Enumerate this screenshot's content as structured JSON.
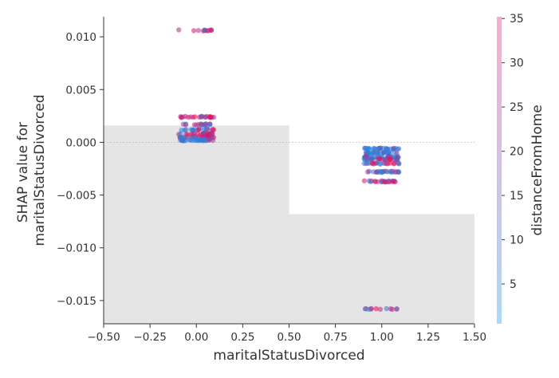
{
  "chart_data": {
    "type": "scatter",
    "title": "",
    "xlabel": "maritalStatusDivorced",
    "ylabel_lines": [
      "SHAP value for",
      "maritalStatusDivorced"
    ],
    "xlim": [
      -0.5,
      1.5
    ],
    "ylim": [
      -0.0172,
      0.0119
    ],
    "xticks": [
      -0.5,
      -0.25,
      0.0,
      0.25,
      0.5,
      0.75,
      1.0,
      1.25,
      1.5
    ],
    "xtick_labels": [
      "−0.50",
      "−0.25",
      "0.00",
      "0.25",
      "0.50",
      "0.75",
      "1.00",
      "1.25",
      "1.50"
    ],
    "yticks": [
      0.01,
      0.005,
      0.0,
      -0.005,
      -0.01,
      -0.015
    ],
    "ytick_labels": [
      "0.010",
      "0.005",
      "0.000",
      "−0.005",
      "−0.010",
      "−0.015"
    ],
    "zero_line": 0.0,
    "background_histogram": {
      "color": "#e5e5e5",
      "bins": [
        {
          "x0": -0.5,
          "x1": 0.5,
          "y_top": 0.0016
        },
        {
          "x0": 0.5,
          "x1": 1.5,
          "y_top": -0.0068
        }
      ]
    },
    "point_groups": [
      {
        "x": 0.0,
        "y": 0.0106,
        "n": 12,
        "low_frac": 0.1
      },
      {
        "x": 0.0,
        "y": 0.0024,
        "n": 22,
        "low_frac": 0.1
      },
      {
        "x": 0.0,
        "y": 0.0017,
        "n": 16,
        "low_frac": 0.4
      },
      {
        "x": 0.0,
        "y": 0.0012,
        "n": 18,
        "low_frac": 0.55
      },
      {
        "x": 0.0,
        "y": 0.0008,
        "n": 26,
        "low_frac": 0.3
      },
      {
        "x": 0.0,
        "y": 0.0005,
        "n": 26,
        "low_frac": 0.5
      },
      {
        "x": 0.0,
        "y": 0.0002,
        "n": 30,
        "low_frac": 0.9
      },
      {
        "x": 1.0,
        "y": -0.0006,
        "n": 26,
        "low_frac": 0.95
      },
      {
        "x": 1.0,
        "y": -0.001,
        "n": 28,
        "low_frac": 0.95
      },
      {
        "x": 1.0,
        "y": -0.0014,
        "n": 28,
        "low_frac": 0.85
      },
      {
        "x": 1.0,
        "y": -0.0016,
        "n": 26,
        "low_frac": 0.5
      },
      {
        "x": 1.0,
        "y": -0.002,
        "n": 22,
        "low_frac": 0.7
      },
      {
        "x": 1.0,
        "y": -0.0028,
        "n": 24,
        "low_frac": 0.6
      },
      {
        "x": 1.0,
        "y": -0.0037,
        "n": 22,
        "low_frac": 0.3
      },
      {
        "x": 1.0,
        "y": -0.0158,
        "n": 12,
        "low_frac": 0.3
      }
    ],
    "colorbar": {
      "label": "distanceFromHome",
      "range": [
        0.5,
        35.2
      ],
      "ticks": [
        5,
        10,
        15,
        20,
        25,
        30,
        35
      ],
      "tick_labels": [
        "5",
        "10",
        "15",
        "20",
        "25",
        "30",
        "35"
      ],
      "color_low": "#aed8f5",
      "color_high": "#f5aece",
      "point_color_low": "#1e88e5",
      "point_color_high": "#ff0052"
    }
  }
}
